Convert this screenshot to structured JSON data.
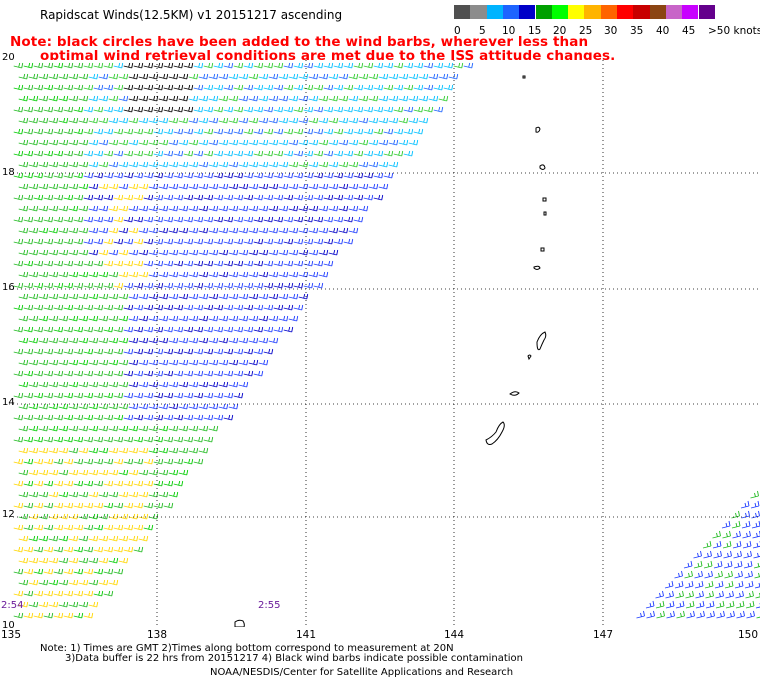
{
  "header": {
    "title": "Rapidscat Winds(12.5KM) v1 20151217 ascending",
    "note_line1": "Note: black circles have been added to the wind barbs, wherever less than",
    "note_line2": "optimal wind retrieval conditions are met due to the ISS attitude changes."
  },
  "legend": {
    "labels": [
      "0",
      "5",
      "10",
      "15",
      "20",
      "25",
      "30",
      "35",
      "40",
      "45",
      ">50 knots"
    ],
    "colors": [
      "#505050",
      "#8c8c8c",
      "#00b4ff",
      "#1e64ff",
      "#0000c8",
      "#00a000",
      "#00ff00",
      "#ffff00",
      "#ffb400",
      "#ff6400",
      "#ff0000",
      "#c80000",
      "#8b4513",
      "#c864c8",
      "#c800ff",
      "#64008c"
    ]
  },
  "map": {
    "lat_labels": [
      "20",
      "18",
      "16",
      "14",
      "12",
      "10"
    ],
    "lon_labels": [
      "135",
      "138",
      "141",
      "144",
      "147",
      "150"
    ],
    "time_labels": [
      "2:54",
      "2:55"
    ]
  },
  "footer": {
    "line1": "Note: 1) Times are GMT 2)Times along bottom correspond to measurement at 20N",
    "line2": "3)Data buffer is 22 hrs from 20151217 4) Black wind barbs indicate possible contamination",
    "line3": "NOAA/NESDIS/Center for Satellite Applications and Research"
  }
}
